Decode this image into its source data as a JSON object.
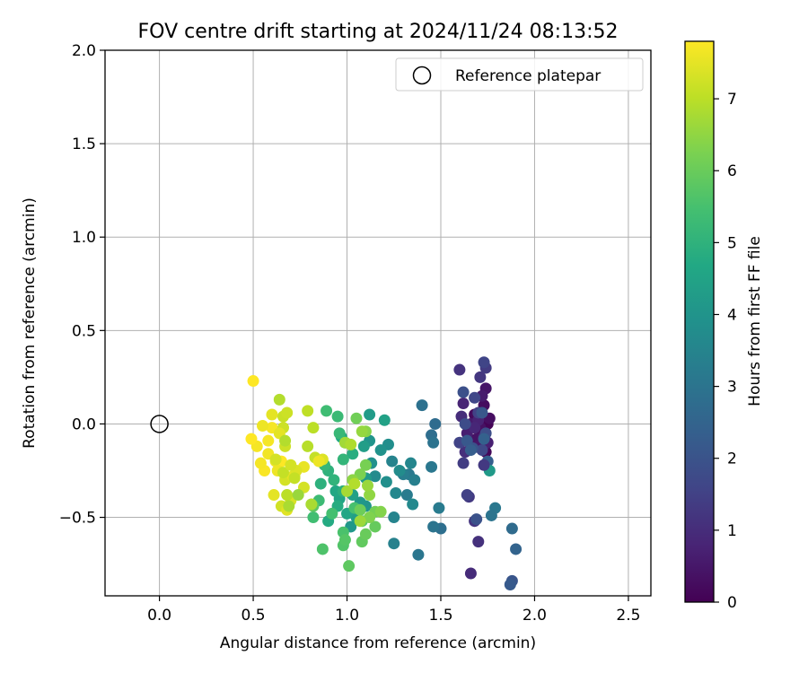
{
  "chart_data": {
    "type": "scatter",
    "title": "FOV centre drift starting at 2024/11/24 08:13:52",
    "xlabel": "Angular distance from reference (arcmin)",
    "ylabel": "Rotation from reference (arcmin)",
    "xlim": [
      -0.29,
      2.62
    ],
    "ylim": [
      -0.92,
      2.0
    ],
    "xticks": [
      0.0,
      0.5,
      1.0,
      1.5,
      2.0,
      2.5
    ],
    "xtick_labels": [
      "0.0",
      "0.5",
      "1.0",
      "1.5",
      "2.0",
      "2.5"
    ],
    "yticks": [
      -0.5,
      0.0,
      0.5,
      1.0,
      1.5,
      2.0
    ],
    "ytick_labels": [
      "−0.5",
      "0.0",
      "0.5",
      "1.0",
      "1.5",
      "2.0"
    ],
    "grid": true,
    "legend": {
      "position": "top-right",
      "label": "Reference platepar"
    },
    "reference_point": {
      "x": 0.0,
      "y": 0.0
    },
    "colorbar": {
      "label": "Hours from first FF file",
      "colormap": "viridis",
      "min": 0,
      "max": 7.8,
      "ticks": [
        0,
        1,
        2,
        3,
        4,
        5,
        6,
        7
      ],
      "tick_labels": [
        "0",
        "1",
        "2",
        "3",
        "4",
        "5",
        "6",
        "7"
      ]
    },
    "points": [
      [
        1.72,
        -0.05,
        0.0
      ],
      [
        1.75,
        0.0,
        0.05
      ],
      [
        1.7,
        -0.1,
        0.1
      ],
      [
        1.74,
        -0.15,
        0.15
      ],
      [
        1.68,
        0.05,
        0.2
      ],
      [
        1.73,
        0.1,
        0.25
      ],
      [
        1.76,
        0.03,
        0.3
      ],
      [
        1.71,
        -0.02,
        0.35
      ],
      [
        1.69,
        -0.08,
        0.4
      ],
      [
        1.74,
        0.19,
        0.45
      ],
      [
        1.7,
        -0.12,
        0.5
      ],
      [
        1.66,
        0.0,
        0.55
      ],
      [
        1.72,
        0.15,
        0.6
      ],
      [
        1.64,
        -0.05,
        0.65
      ],
      [
        1.75,
        -0.1,
        0.7
      ],
      [
        1.7,
        0.02,
        0.75
      ],
      [
        1.62,
        0.11,
        0.8
      ],
      [
        1.68,
        -0.02,
        0.85
      ],
      [
        1.73,
        -0.07,
        0.9
      ],
      [
        1.66,
        -0.8,
        0.95
      ],
      [
        1.61,
        0.04,
        1.0
      ],
      [
        1.63,
        -0.15,
        1.05
      ],
      [
        1.7,
        -0.63,
        1.1
      ],
      [
        1.6,
        0.29,
        1.15
      ],
      [
        1.68,
        -0.52,
        1.2
      ],
      [
        1.71,
        0.25,
        1.25
      ],
      [
        1.65,
        -0.39,
        1.3
      ],
      [
        1.74,
        0.3,
        1.35
      ],
      [
        1.62,
        -0.21,
        1.4
      ],
      [
        1.7,
        0.06,
        1.5
      ],
      [
        1.6,
        -0.1,
        1.55
      ],
      [
        1.73,
        0.33,
        1.6
      ],
      [
        1.68,
        0.14,
        1.65
      ],
      [
        1.72,
        -0.14,
        1.7
      ],
      [
        1.63,
        0.0,
        1.8
      ],
      [
        1.74,
        -0.05,
        1.85
      ],
      [
        1.62,
        0.17,
        1.9
      ],
      [
        1.69,
        -0.51,
        1.95
      ],
      [
        1.67,
        -0.13,
        2.0
      ],
      [
        1.88,
        -0.84,
        2.05
      ],
      [
        1.72,
        0.06,
        2.1
      ],
      [
        1.64,
        -0.09,
        2.15
      ],
      [
        1.87,
        -0.86,
        2.2
      ],
      [
        1.66,
        -0.14,
        2.3
      ],
      [
        1.75,
        -0.2,
        2.35
      ],
      [
        1.73,
        -0.08,
        2.4
      ],
      [
        1.9,
        -0.67,
        2.5
      ],
      [
        1.88,
        -0.56,
        2.7
      ],
      [
        1.47,
        0.0,
        2.75
      ],
      [
        1.45,
        -0.06,
        2.8
      ],
      [
        1.5,
        -0.56,
        2.85
      ],
      [
        1.4,
        0.1,
        2.9
      ],
      [
        1.46,
        -0.1,
        2.95
      ],
      [
        1.46,
        -0.55,
        3.0
      ],
      [
        1.38,
        -0.7,
        3.05
      ],
      [
        1.45,
        -0.23,
        3.1
      ],
      [
        1.33,
        -0.27,
        3.15
      ],
      [
        1.49,
        -0.45,
        3.2
      ],
      [
        1.32,
        -0.38,
        3.25
      ],
      [
        1.3,
        -0.27,
        3.3
      ],
      [
        1.36,
        -0.3,
        3.35
      ],
      [
        1.25,
        -0.64,
        3.4
      ],
      [
        1.24,
        -0.2,
        3.45
      ],
      [
        1.25,
        -0.5,
        3.5
      ],
      [
        1.34,
        -0.21,
        3.55
      ],
      [
        1.26,
        -0.37,
        3.6
      ],
      [
        1.35,
        -0.43,
        3.65
      ],
      [
        1.15,
        -0.28,
        3.7
      ],
      [
        1.28,
        -0.25,
        3.75
      ],
      [
        1.22,
        -0.11,
        3.8
      ],
      [
        1.21,
        -0.31,
        3.85
      ],
      [
        1.13,
        -0.21,
        3.9
      ],
      [
        1.18,
        -0.14,
        3.95
      ],
      [
        1.12,
        -0.09,
        4.0
      ],
      [
        1.1,
        -0.44,
        4.05
      ],
      [
        1.07,
        -0.42,
        4.1
      ],
      [
        1.02,
        -0.55,
        4.15
      ],
      [
        1.1,
        -0.29,
        4.2
      ],
      [
        1.12,
        0.05,
        4.25
      ],
      [
        1.09,
        -0.12,
        4.3
      ],
      [
        1.05,
        -0.5,
        4.35
      ],
      [
        1.03,
        -0.38,
        4.4
      ],
      [
        1.2,
        0.02,
        4.45
      ],
      [
        0.99,
        -0.1,
        4.5
      ],
      [
        0.96,
        -0.4,
        4.55
      ],
      [
        1.0,
        -0.48,
        4.6
      ],
      [
        0.94,
        -0.36,
        4.65
      ],
      [
        0.97,
        -0.07,
        4.7
      ],
      [
        0.9,
        -0.52,
        4.75
      ],
      [
        0.95,
        -0.44,
        4.8
      ],
      [
        1.03,
        -0.16,
        4.85
      ],
      [
        0.98,
        -0.36,
        4.9
      ],
      [
        0.86,
        -0.32,
        4.95
      ],
      [
        0.9,
        -0.25,
        5.0
      ],
      [
        0.93,
        -0.3,
        5.05
      ],
      [
        0.98,
        -0.19,
        5.1
      ],
      [
        0.88,
        -0.22,
        5.15
      ],
      [
        0.96,
        -0.05,
        5.2
      ],
      [
        0.95,
        0.04,
        5.25
      ],
      [
        0.85,
        -0.41,
        5.3
      ],
      [
        0.89,
        0.07,
        5.35
      ],
      [
        0.82,
        -0.5,
        5.4
      ],
      [
        0.92,
        -0.48,
        5.45
      ],
      [
        1.04,
        -0.45,
        5.5
      ],
      [
        0.98,
        -0.58,
        5.55
      ],
      [
        0.87,
        -0.67,
        5.6
      ],
      [
        0.98,
        -0.65,
        5.65
      ],
      [
        0.99,
        -0.62,
        5.7
      ],
      [
        1.08,
        -0.52,
        5.75
      ],
      [
        0.82,
        -0.44,
        5.8
      ],
      [
        1.01,
        -0.76,
        5.85
      ],
      [
        1.08,
        -0.63,
        5.9
      ],
      [
        1.15,
        -0.55,
        5.95
      ],
      [
        1.1,
        -0.59,
        6.0
      ],
      [
        1.07,
        -0.46,
        6.05
      ],
      [
        1.05,
        0.03,
        6.1
      ],
      [
        1.15,
        -0.47,
        6.15
      ],
      [
        1.1,
        -0.22,
        6.2
      ],
      [
        1.07,
        -0.27,
        6.25
      ],
      [
        1.12,
        -0.5,
        6.3
      ],
      [
        1.18,
        -0.47,
        6.35
      ],
      [
        1.1,
        -0.04,
        6.4
      ],
      [
        1.03,
        -0.3,
        6.45
      ],
      [
        1.12,
        -0.38,
        6.5
      ],
      [
        1.08,
        -0.04,
        6.55
      ],
      [
        1.11,
        -0.33,
        6.6
      ],
      [
        1.07,
        -0.52,
        6.65
      ],
      [
        0.99,
        -0.1,
        6.7
      ],
      [
        1.0,
        -0.36,
        6.75
      ],
      [
        0.81,
        -0.43,
        6.8
      ],
      [
        1.02,
        -0.11,
        6.85
      ],
      [
        1.04,
        -0.32,
        6.9
      ],
      [
        0.79,
        -0.12,
        6.95
      ],
      [
        0.82,
        -0.02,
        7.0
      ],
      [
        0.79,
        0.07,
        7.05
      ],
      [
        0.83,
        -0.18,
        7.1
      ],
      [
        0.66,
        0.04,
        7.15
      ],
      [
        0.67,
        -0.12,
        7.2
      ],
      [
        0.65,
        -0.44,
        7.25
      ],
      [
        0.67,
        -0.3,
        7.3
      ],
      [
        0.7,
        -0.41,
        7.35
      ],
      [
        0.72,
        -0.28,
        7.4
      ],
      [
        0.68,
        -0.46,
        7.45
      ],
      [
        0.71,
        -0.28,
        7.5
      ],
      [
        0.77,
        -0.23,
        7.55
      ],
      [
        0.62,
        -0.2,
        7.6
      ],
      [
        0.58,
        -0.16,
        7.65
      ],
      [
        0.52,
        -0.12,
        7.7
      ],
      [
        0.56,
        -0.25,
        7.75
      ],
      [
        0.65,
        -0.2,
        7.8
      ],
      [
        0.6,
        0.05,
        7.5
      ],
      [
        0.63,
        -0.25,
        7.6
      ],
      [
        0.5,
        0.23,
        7.8
      ],
      [
        0.54,
        -0.21,
        7.7
      ],
      [
        0.68,
        0.06,
        7.2
      ],
      [
        0.64,
        0.13,
        6.9
      ],
      [
        0.61,
        -0.38,
        7.5
      ],
      [
        0.73,
        -0.25,
        7.4
      ],
      [
        0.77,
        -0.34,
        7.3
      ],
      [
        0.6,
        -0.02,
        7.7
      ],
      [
        0.55,
        -0.01,
        7.6
      ],
      [
        0.49,
        -0.08,
        7.8
      ],
      [
        0.58,
        -0.09,
        7.7
      ],
      [
        0.66,
        -0.26,
        7.1
      ],
      [
        0.7,
        -0.22,
        7.3
      ],
      [
        0.87,
        -0.19,
        7.4
      ],
      [
        0.85,
        -0.2,
        7.6
      ],
      [
        0.72,
        -0.29,
        7.1
      ],
      [
        0.68,
        -0.38,
        7.0
      ],
      [
        0.66,
        -0.02,
        7.2
      ],
      [
        0.64,
        -0.05,
        7.5
      ],
      [
        0.62,
        -0.19,
        7.3
      ],
      [
        0.67,
        -0.09,
        6.9
      ],
      [
        0.69,
        -0.44,
        6.8
      ],
      [
        0.74,
        -0.38,
        6.6
      ],
      [
        1.76,
        -0.25,
        4.2
      ],
      [
        1.79,
        -0.45,
        3.1
      ],
      [
        1.77,
        -0.49,
        3.0
      ],
      [
        1.64,
        -0.38,
        1.5
      ],
      [
        1.73,
        -0.22,
        1.3
      ]
    ]
  }
}
